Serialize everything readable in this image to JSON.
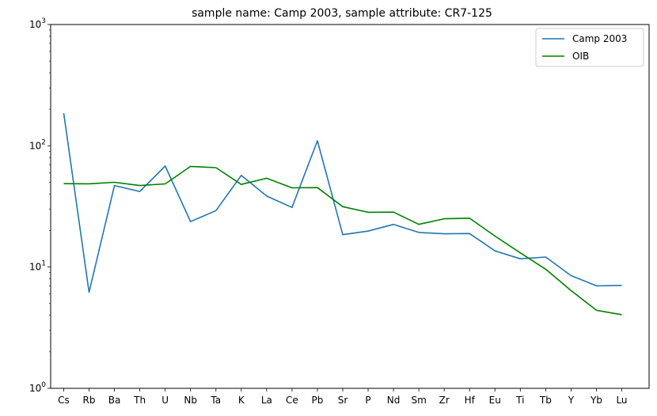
{
  "chart_data": {
    "type": "line",
    "title": "sample name: Camp 2003, sample attribute: CR7-125",
    "xlabel": "",
    "ylabel": "",
    "yscale": "log",
    "ylim": [
      1,
      1000
    ],
    "y_ticks": [
      {
        "value": 1,
        "base": "10",
        "exp": "0"
      },
      {
        "value": 10,
        "base": "10",
        "exp": "1"
      },
      {
        "value": 100,
        "base": "10",
        "exp": "2"
      },
      {
        "value": 1000,
        "base": "10",
        "exp": "3"
      }
    ],
    "categories": [
      "Cs",
      "Rb",
      "Ba",
      "Th",
      "U",
      "Nb",
      "Ta",
      "K",
      "La",
      "Ce",
      "Pb",
      "Sr",
      "P",
      "Nd",
      "Sm",
      "Zr",
      "Hf",
      "Eu",
      "Ti",
      "Tb",
      "Y",
      "Yb",
      "Lu"
    ],
    "series": [
      {
        "name": "Camp 2003",
        "color": "#1f77b4",
        "values": [
          186,
          6.2,
          47,
          42,
          68,
          23.7,
          29.2,
          57,
          38.5,
          31,
          110,
          18.5,
          19.8,
          22.5,
          19.3,
          18.8,
          18.9,
          13.6,
          11.7,
          12.1,
          8.5,
          7.0,
          7.05
        ]
      },
      {
        "name": "OIB",
        "color": "#008000",
        "values": [
          48.7,
          48.6,
          50,
          47,
          48.5,
          67.6,
          66,
          48,
          54,
          45,
          45.2,
          31.5,
          28.3,
          28.4,
          22.5,
          25,
          25.3,
          18,
          13.1,
          9.6,
          6.4,
          4.4,
          4.05
        ]
      }
    ],
    "legend": {
      "position": "top-right"
    },
    "grid": false
  }
}
